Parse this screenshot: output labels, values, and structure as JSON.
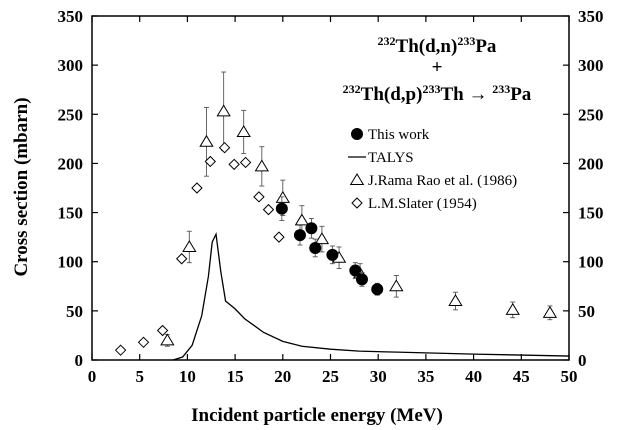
{
  "chart_data": {
    "type": "scatter",
    "title_lines": [
      [
        "232",
        "Th(d,n)",
        "233",
        "Pa"
      ],
      [
        "+"
      ],
      [
        "232",
        "Th(d,p)",
        "233",
        "Th → ",
        "233",
        "Pa"
      ]
    ],
    "xlabel": "Incident particle energy (MeV)",
    "ylabel": "Cross section (mbarn)",
    "xlim": [
      0,
      50
    ],
    "ylim": [
      0,
      350
    ],
    "xticks": [
      0,
      5,
      10,
      15,
      20,
      25,
      30,
      35,
      40,
      45,
      50
    ],
    "yticks": [
      0,
      50,
      100,
      150,
      200,
      250,
      300,
      350
    ],
    "grid": false,
    "legend_position": "top-right",
    "series": [
      {
        "name": "This work",
        "marker": "filled-circle",
        "x": [
          19.9,
          21.8,
          23.0,
          23.4,
          25.2,
          27.6,
          28.3,
          29.9
        ],
        "y": [
          154,
          127,
          134,
          114,
          107,
          91,
          82,
          72
        ],
        "yerr": [
          12,
          10,
          10,
          9,
          9,
          8,
          7,
          6
        ]
      },
      {
        "name": "TALYS",
        "marker": "line",
        "x": [
          8.5,
          9.5,
          10.5,
          11.5,
          12.2,
          12.6,
          13.0,
          13.5,
          14.0,
          15.0,
          16.0,
          18.0,
          20.0,
          22.0,
          25.0,
          28.0,
          32.0,
          36.0,
          40.0,
          45.0,
          50.0
        ],
        "y": [
          0,
          3,
          15,
          45,
          85,
          120,
          128,
          90,
          60,
          52,
          42,
          28,
          19,
          14,
          11,
          9,
          8,
          7,
          6,
          5,
          4
        ]
      },
      {
        "name": "J.Rama Rao et al. (1986)",
        "marker": "open-triangle",
        "x": [
          7.9,
          10.2,
          12.0,
          13.8,
          15.9,
          17.8,
          20.0,
          22.0,
          24.1,
          25.9,
          28.1,
          31.9,
          38.1,
          44.1,
          48.0
        ],
        "y": [
          20,
          115,
          222,
          253,
          232,
          197,
          165,
          142,
          123,
          104,
          88,
          75,
          60,
          51,
          48
        ],
        "yerr": [
          6,
          16,
          35,
          40,
          22,
          20,
          18,
          15,
          13,
          11,
          10,
          11,
          9,
          8,
          7
        ]
      },
      {
        "name": "L.M.Slater (1954)",
        "marker": "open-diamond",
        "x": [
          3.0,
          5.4,
          7.4,
          9.4,
          11.0,
          12.4,
          13.9,
          14.9,
          16.1,
          17.5,
          18.5,
          19.6
        ],
        "y": [
          10,
          18,
          30,
          103,
          175,
          202,
          216,
          199,
          201,
          166,
          153,
          125
        ]
      }
    ]
  }
}
